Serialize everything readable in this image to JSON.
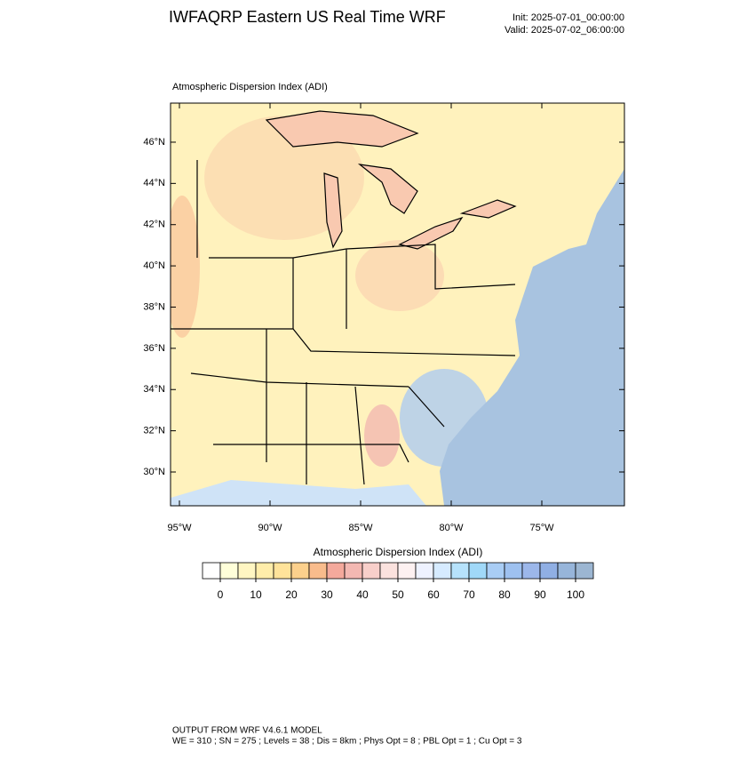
{
  "header": {
    "title": "IWFAQRP Eastern US Real Time WRF",
    "init": "Init: 2025-07-01_00:00:00",
    "valid": "Valid: 2025-07-02_06:00:00"
  },
  "map": {
    "label": "Atmospheric Dispersion Index   (ADI)",
    "lat_ticks": [
      {
        "value": 30,
        "label": "30°N"
      },
      {
        "value": 32,
        "label": "32°N"
      },
      {
        "value": 34,
        "label": "34°N"
      },
      {
        "value": 36,
        "label": "36°N"
      },
      {
        "value": 38,
        "label": "38°N"
      },
      {
        "value": 40,
        "label": "40°N"
      },
      {
        "value": 42,
        "label": "42°N"
      },
      {
        "value": 44,
        "label": "44°N"
      },
      {
        "value": 46,
        "label": "46°N"
      }
    ],
    "lon_ticks": [
      {
        "value": -95,
        "label": "95°W"
      },
      {
        "value": -90,
        "label": "90°W"
      },
      {
        "value": -85,
        "label": "85°W"
      },
      {
        "value": -80,
        "label": "80°W"
      },
      {
        "value": -75,
        "label": "75°W"
      }
    ]
  },
  "colorbar": {
    "title": "Atmospheric Dispersion Index  (ADI)",
    "ticks": [
      0,
      10,
      20,
      30,
      40,
      50,
      60,
      70,
      80,
      90,
      100
    ],
    "colors": [
      "#ffffff",
      "#ffffd9",
      "#fff6c2",
      "#ffedaa",
      "#ffe39a",
      "#fcd08c",
      "#f9bc8c",
      "#f4a99c",
      "#f3b8b2",
      "#f8cfca",
      "#fbe2de",
      "#fdf1f1",
      "#eef2ff",
      "#d6ebff",
      "#b6e2fb",
      "#a0d8f8",
      "#a9cdf5",
      "#9ec1f0",
      "#9cb7ea",
      "#90afe4",
      "#97b5da",
      "#9cb6d2"
    ]
  },
  "footer": {
    "line1": "OUTPUT FROM WRF V4.6.1 MODEL",
    "line2": "WE = 310 ; SN = 275 ; Levels = 38 ; Dis = 8km ; Phys Opt = 8 ; PBL Opt = 1 ; Cu Opt = 3"
  }
}
